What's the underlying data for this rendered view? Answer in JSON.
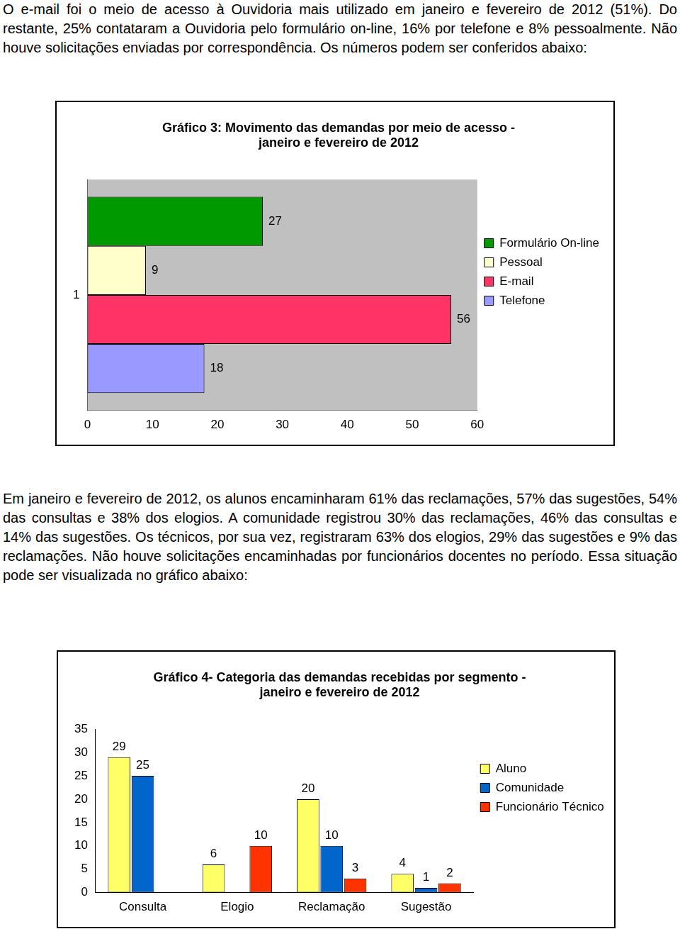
{
  "text": {
    "paragraphs": [
      "O e-mail foi o meio de acesso à Ouvidoria mais utilizado em janeiro e fevereiro de 2012 (51%). Do restante, 25% contataram a Ouvidoria pelo formulário on-line, 16% por telefone e 8% pessoalmente. Não houve solicitações enviadas por correspondência. Os números podem ser conferidos abaixo:",
      "Em janeiro e fevereiro de 2012, os alunos encaminharam 61% das reclamações, 57% das sugestões, 54% das consultas e 38% dos elogios. A comunidade registrou 30% das reclamações, 46% das consultas e 14% das sugestões. Os técnicos, por sua vez, registraram 63% dos elogios, 29% das sugestões e 9% das reclamações. Não houve solicitações encaminhadas por funcionários docentes no período. Essa situação pode ser visualizada no gráfico abaixo:"
    ]
  },
  "chart_data": [
    {
      "type": "bar",
      "orientation": "horizontal",
      "title": [
        "Gráfico 3: Movimento das demandas por meio de acesso -",
        "janeiro e fevereiro de 2012"
      ],
      "categories": [
        "1"
      ],
      "series": [
        {
          "name": "Formulário On-line",
          "color": "#009900",
          "values": [
            27
          ]
        },
        {
          "name": "Pessoal",
          "color": "#ffffcc",
          "values": [
            9
          ]
        },
        {
          "name": "E-mail",
          "color": "#ff3366",
          "values": [
            56
          ]
        },
        {
          "name": "Telefone",
          "color": "#9999ff",
          "values": [
            18
          ]
        }
      ],
      "xlim": [
        0,
        60
      ],
      "xticks": [
        0,
        10,
        20,
        30,
        40,
        50,
        60
      ],
      "grid": false,
      "legend": "right",
      "data_labels": true
    },
    {
      "type": "bar",
      "title": [
        "Gráfico 4- Categoria das demandas recebidas por segmento -",
        "janeiro e fevereiro de 2012"
      ],
      "categories": [
        "Consulta",
        "Elogio",
        "Reclamação",
        "Sugestão"
      ],
      "series": [
        {
          "name": "Aluno",
          "color": "#ffff66",
          "values": [
            29,
            6,
            20,
            4
          ]
        },
        {
          "name": "Comunidade",
          "color": "#0066cc",
          "values": [
            25,
            null,
            10,
            1
          ]
        },
        {
          "name": "Funcionário Técnico",
          "color": "#ff3300",
          "values": [
            null,
            10,
            3,
            2
          ]
        }
      ],
      "ylim": [
        0,
        35
      ],
      "yticks": [
        0,
        5,
        10,
        15,
        20,
        25,
        30,
        35
      ],
      "grid": false,
      "legend": "right",
      "data_labels": true
    }
  ]
}
